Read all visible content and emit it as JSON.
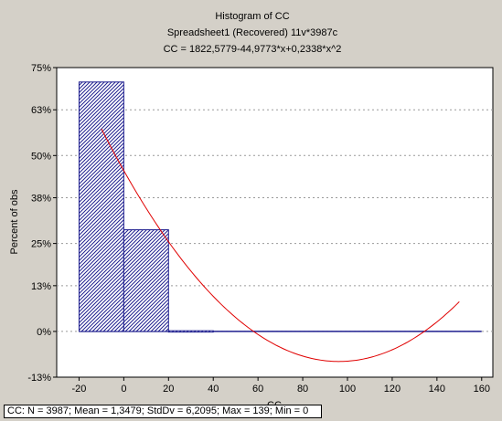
{
  "chart_data": {
    "type": "bar",
    "title": "Histogram of CC",
    "subtitle": "Spreadsheet1  (Recovered) 11v*3987c",
    "fit_label": "CC = 1822,5779-44,9773*x+0,2338*x^2",
    "xlabel": "CC",
    "ylabel": "Percent of obs",
    "bin_edges": [
      -20,
      0,
      20,
      40
    ],
    "values": [
      70.9,
      28.9,
      0.2
    ],
    "xlim": [
      -30,
      165
    ],
    "ylim": [
      -13,
      75
    ],
    "x_ticks": [
      -20,
      0,
      20,
      40,
      60,
      80,
      100,
      120,
      140,
      160
    ],
    "x_tick_labels": [
      "-20",
      "0",
      "20",
      "40",
      "60",
      "80",
      "100",
      "120",
      "140",
      "160"
    ],
    "y_ticks": [
      -13,
      0,
      13,
      25,
      38,
      50,
      63,
      75
    ],
    "y_tick_labels": [
      "-13%",
      "0%",
      "13%",
      "25%",
      "38%",
      "50%",
      "63%",
      "75%"
    ],
    "fit_curve": {
      "x_start": -10,
      "x_end": 150,
      "coefficients_count": [
        1822.5779,
        -44.9773,
        0.2338
      ],
      "total_n": 3987
    },
    "grid": true,
    "bar_fill": "#1f1f8f",
    "curve_color": "#e00000"
  },
  "stats": {
    "text": "CC:  N = 3987; Mean = 1,3479; StdDv = 6,2095; Max = 139; Min = 0"
  }
}
